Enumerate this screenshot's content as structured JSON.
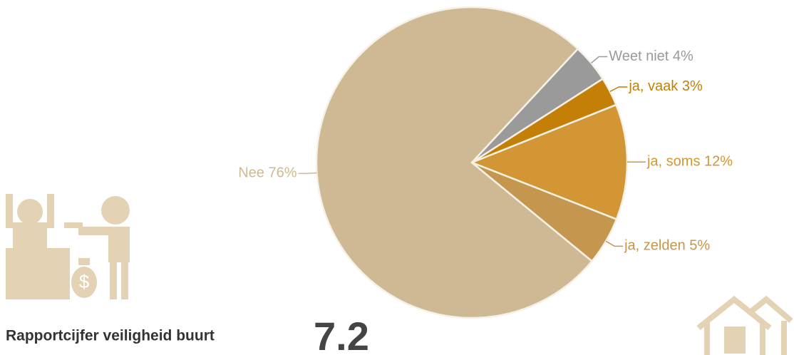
{
  "chart_data": {
    "type": "pie",
    "values": [
      4,
      3,
      12,
      5,
      76
    ],
    "value_labels": [
      "Weet niet 4%",
      "ja, vaak 3%",
      "ja, soms 12%",
      "ja, zelden 5%",
      "Nee 76%"
    ],
    "colors": [
      "#9a9a9a",
      "#c47f06",
      "#d39634",
      "#c4964e",
      "#cfb994"
    ]
  },
  "score": {
    "label": "Rapportcijfer veiligheid buurt",
    "value": 7.2
  }
}
